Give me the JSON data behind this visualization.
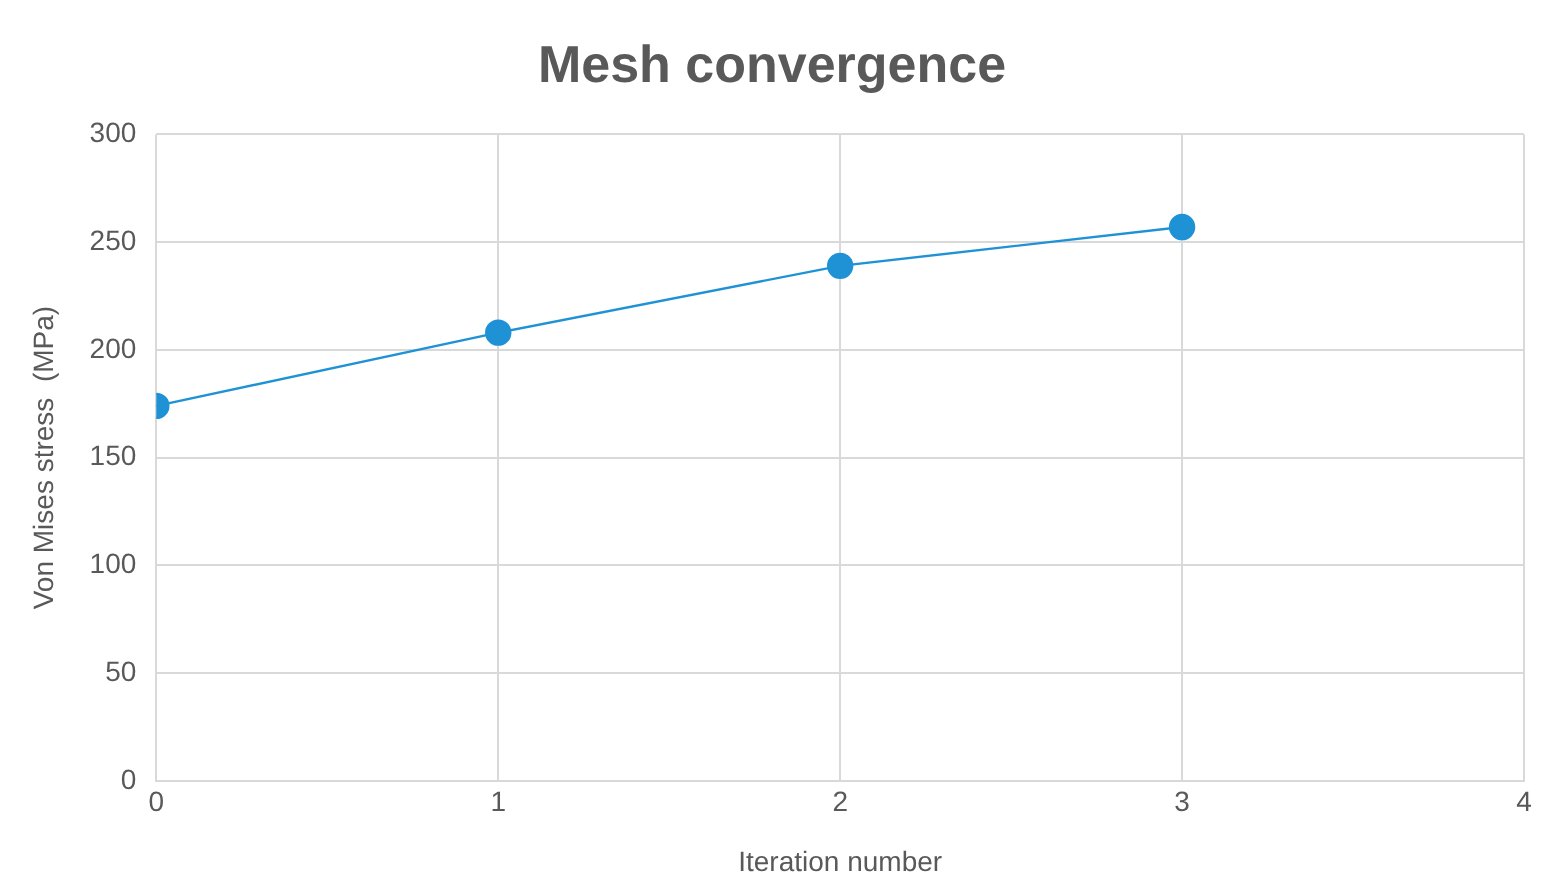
{
  "chart_data": {
    "type": "line",
    "title": "Mesh convergence",
    "xlabel": "Iteration number",
    "ylabel": "Von Mises stress  (MPa)",
    "x": [
      0,
      1,
      2,
      3
    ],
    "series": [
      {
        "color": "#1f92d6",
        "values": [
          174,
          208,
          239,
          257
        ]
      }
    ],
    "xlim": [
      0,
      4
    ],
    "xticks": [
      0,
      1,
      2,
      3,
      4
    ],
    "ylim": [
      0,
      300
    ],
    "yticks": [
      0,
      50,
      100,
      150,
      200,
      250,
      300
    ],
    "grid": true,
    "legend": false,
    "marker": "circle",
    "line_style": "solid"
  }
}
